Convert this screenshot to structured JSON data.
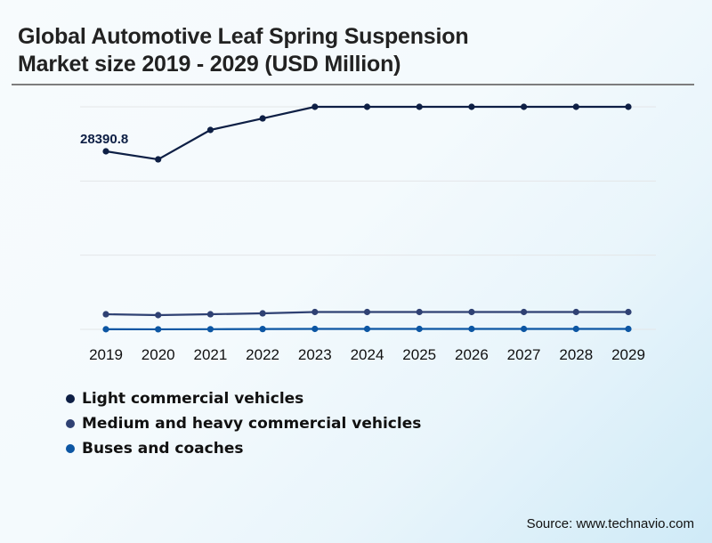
{
  "header": {
    "title_line1": "Global Automotive Leaf Spring Suspension",
    "title_line2": "Market size 2019 - 2029 (USD Million)"
  },
  "chart_data": {
    "type": "line",
    "title": "Global Automotive Leaf Spring Suspension Market size 2019 - 2029 (USD Million)",
    "xlabel": "",
    "ylabel": "USD Million",
    "categories": [
      "2019",
      "2020",
      "2021",
      "2022",
      "2023",
      "2024",
      "2025",
      "2026",
      "2027",
      "2028",
      "2029"
    ],
    "ylim": [
      0,
      35490
    ],
    "gridlines": [
      0,
      11830,
      23660,
      35490
    ],
    "grid": true,
    "legend_position": "bottom-left",
    "series": [
      {
        "name": "Light commercial vehicles",
        "color": "#0e1f45",
        "values": [
          28390.8,
          27110,
          31800,
          33640,
          35490,
          35490,
          35490,
          35490,
          35490,
          35490,
          35490
        ]
      },
      {
        "name": "Medium and heavy commercial vehicles",
        "color": "#2f4173",
        "values": [
          2410,
          2270,
          2410,
          2550,
          2770,
          2770,
          2770,
          2770,
          2770,
          2770,
          2770
        ]
      },
      {
        "name": "Buses and coaches",
        "color": "#0c56a3",
        "values": [
          20,
          10,
          30,
          50,
          70,
          70,
          70,
          70,
          70,
          70,
          70
        ]
      }
    ],
    "annotations": [
      {
        "series": 0,
        "index": 0,
        "text": "28390.8"
      }
    ]
  },
  "footer": {
    "source": "Source: www.technavio.com"
  }
}
